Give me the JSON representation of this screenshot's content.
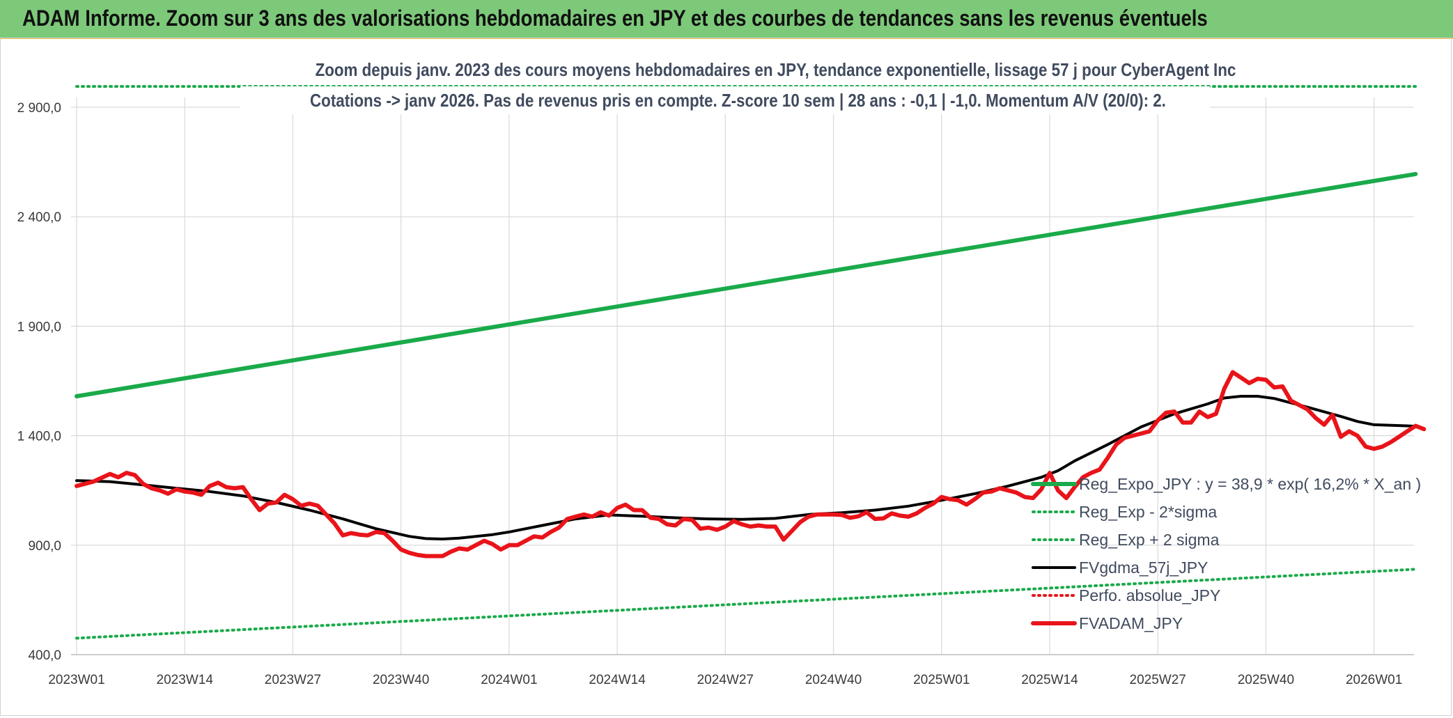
{
  "banner": {
    "title": "ADAM Informe. Zoom sur 3 ans des valorisations hebdomadaires en JPY et des courbes de tendances sans les revenus éventuels"
  },
  "chart_data": {
    "type": "line",
    "title_line1": "Zoom depuis janv. 2023 des cours moyens hebdomadaires en JPY, tendance exponentielle, lissage 57 j pour CyberAgent Inc",
    "title_line2": "Cotations -> janv 2026. Pas de revenus pris en compte. Z-score 10 sem | 28 ans : -0,1 | -1,0. Momentum A/V (20/0): 2.",
    "ylim": [
      400,
      3000
    ],
    "yticks": [
      400,
      900,
      1400,
      1900,
      2400,
      2900
    ],
    "ytick_labels": [
      "400,0",
      "900,0",
      "1 400,0",
      "1 900,0",
      "2 400,0",
      "2 900,0"
    ],
    "xticks": [
      {
        "week": 0,
        "label": "2023W01"
      },
      {
        "week": 13,
        "label": "2023W14"
      },
      {
        "week": 26,
        "label": "2023W27"
      },
      {
        "week": 39,
        "label": "2023W40"
      },
      {
        "week": 52,
        "label": "2024W01"
      },
      {
        "week": 65,
        "label": "2024W14"
      },
      {
        "week": 78,
        "label": "2024W27"
      },
      {
        "week": 91,
        "label": "2024W40"
      },
      {
        "week": 104,
        "label": "2025W01"
      },
      {
        "week": 117,
        "label": "2025W14"
      },
      {
        "week": 130,
        "label": "2025W27"
      },
      {
        "week": 143,
        "label": "2025W40"
      },
      {
        "week": 156,
        "label": "2026W01"
      }
    ],
    "x_range_weeks": [
      0,
      161
    ],
    "grid": true,
    "legend_position": "bottom-right inside plot",
    "series": [
      {
        "name": "Reg_Expo_JPY : y = 38,9 * exp( 16,2% *  X_an )",
        "color": "#1aaa4a",
        "style": "solid-thick",
        "legend_style": "solid-thick",
        "points": [
          [
            0,
            1580
          ],
          [
            161,
            2595
          ]
        ]
      },
      {
        "name": "Reg_Exp - 2*sigma",
        "color": "#1aaa4a",
        "style": "dotted",
        "legend_style": "dotted",
        "points": [
          [
            0,
            475
          ],
          [
            161,
            790
          ]
        ]
      },
      {
        "name": "Reg_Exp + 2 sigma",
        "color": "#1aaa4a",
        "style": "dotted",
        "legend_style": "dotted",
        "points": [
          [
            0,
            2995
          ],
          [
            161,
            2995
          ]
        ]
      },
      {
        "name": "FVgdma_57j_JPY",
        "color": "#000000",
        "style": "solid",
        "legend_style": "solid",
        "points": [
          [
            0,
            1195
          ],
          [
            4,
            1190
          ],
          [
            8,
            1175
          ],
          [
            12,
            1160
          ],
          [
            16,
            1145
          ],
          [
            20,
            1125
          ],
          [
            24,
            1095
          ],
          [
            28,
            1060
          ],
          [
            32,
            1020
          ],
          [
            36,
            975
          ],
          [
            40,
            940
          ],
          [
            42,
            930
          ],
          [
            44,
            928
          ],
          [
            46,
            932
          ],
          [
            50,
            948
          ],
          [
            52,
            960
          ],
          [
            56,
            990
          ],
          [
            60,
            1020
          ],
          [
            64,
            1038
          ],
          [
            68,
            1032
          ],
          [
            72,
            1025
          ],
          [
            76,
            1020
          ],
          [
            80,
            1018
          ],
          [
            84,
            1022
          ],
          [
            88,
            1040
          ],
          [
            92,
            1048
          ],
          [
            96,
            1060
          ],
          [
            100,
            1078
          ],
          [
            104,
            1105
          ],
          [
            108,
            1135
          ],
          [
            112,
            1170
          ],
          [
            116,
            1210
          ],
          [
            118,
            1240
          ],
          [
            120,
            1285
          ],
          [
            124,
            1360
          ],
          [
            128,
            1440
          ],
          [
            132,
            1500
          ],
          [
            136,
            1545
          ],
          [
            138,
            1572
          ],
          [
            140,
            1580
          ],
          [
            142,
            1580
          ],
          [
            144,
            1570
          ],
          [
            148,
            1530
          ],
          [
            152,
            1488
          ],
          [
            154,
            1465
          ],
          [
            156,
            1450
          ],
          [
            160,
            1445
          ],
          [
            161,
            1443
          ]
        ]
      },
      {
        "name": "Perfo. absolue_JPY",
        "color": "#e8141a",
        "style": "dotted",
        "legend_style": "dotted",
        "points": []
      },
      {
        "name": "FVADAM_JPY",
        "color": "#e8141a",
        "style": "solid-thick",
        "legend_style": "solid-thick",
        "points": [
          [
            0,
            1170
          ],
          [
            2,
            1190
          ],
          [
            4,
            1225
          ],
          [
            5,
            1210
          ],
          [
            6,
            1230
          ],
          [
            7,
            1220
          ],
          [
            8,
            1180
          ],
          [
            9,
            1160
          ],
          [
            10,
            1150
          ],
          [
            11,
            1135
          ],
          [
            12,
            1155
          ],
          [
            13,
            1145
          ],
          [
            14,
            1140
          ],
          [
            15,
            1130
          ],
          [
            16,
            1170
          ],
          [
            17,
            1185
          ],
          [
            18,
            1165
          ],
          [
            19,
            1160
          ],
          [
            20,
            1165
          ],
          [
            21,
            1110
          ],
          [
            22,
            1060
          ],
          [
            23,
            1090
          ],
          [
            24,
            1095
          ],
          [
            25,
            1130
          ],
          [
            26,
            1110
          ],
          [
            27,
            1080
          ],
          [
            28,
            1090
          ],
          [
            29,
            1080
          ],
          [
            30,
            1040
          ],
          [
            31,
            1000
          ],
          [
            32,
            945
          ],
          [
            33,
            955
          ],
          [
            34,
            948
          ],
          [
            35,
            945
          ],
          [
            36,
            960
          ],
          [
            37,
            955
          ],
          [
            38,
            920
          ],
          [
            39,
            880
          ],
          [
            40,
            865
          ],
          [
            41,
            855
          ],
          [
            42,
            850
          ],
          [
            43,
            850
          ],
          [
            44,
            850
          ],
          [
            45,
            870
          ],
          [
            46,
            885
          ],
          [
            47,
            880
          ],
          [
            48,
            900
          ],
          [
            49,
            920
          ],
          [
            50,
            905
          ],
          [
            51,
            880
          ],
          [
            52,
            900
          ],
          [
            53,
            900
          ],
          [
            54,
            920
          ],
          [
            55,
            940
          ],
          [
            56,
            935
          ],
          [
            57,
            960
          ],
          [
            58,
            980
          ],
          [
            59,
            1020
          ],
          [
            60,
            1030
          ],
          [
            61,
            1040
          ],
          [
            62,
            1030
          ],
          [
            63,
            1050
          ],
          [
            64,
            1035
          ],
          [
            65,
            1070
          ],
          [
            66,
            1085
          ],
          [
            67,
            1060
          ],
          [
            68,
            1060
          ],
          [
            69,
            1025
          ],
          [
            70,
            1020
          ],
          [
            71,
            995
          ],
          [
            72,
            990
          ],
          [
            73,
            1020
          ],
          [
            74,
            1015
          ],
          [
            75,
            975
          ],
          [
            76,
            980
          ],
          [
            77,
            970
          ],
          [
            78,
            985
          ],
          [
            79,
            1010
          ],
          [
            80,
            995
          ],
          [
            81,
            985
          ],
          [
            82,
            990
          ],
          [
            83,
            985
          ],
          [
            84,
            985
          ],
          [
            85,
            925
          ],
          [
            86,
            965
          ],
          [
            87,
            1005
          ],
          [
            88,
            1030
          ],
          [
            89,
            1040
          ],
          [
            90,
            1040
          ],
          [
            91,
            1040
          ],
          [
            92,
            1038
          ],
          [
            93,
            1025
          ],
          [
            94,
            1032
          ],
          [
            95,
            1050
          ],
          [
            96,
            1020
          ],
          [
            97,
            1022
          ],
          [
            98,
            1045
          ],
          [
            99,
            1035
          ],
          [
            100,
            1030
          ],
          [
            101,
            1045
          ],
          [
            102,
            1070
          ],
          [
            103,
            1090
          ],
          [
            104,
            1120
          ],
          [
            105,
            1110
          ],
          [
            106,
            1105
          ],
          [
            107,
            1085
          ],
          [
            108,
            1110
          ],
          [
            109,
            1140
          ],
          [
            110,
            1145
          ],
          [
            111,
            1160
          ],
          [
            112,
            1150
          ],
          [
            113,
            1140
          ],
          [
            114,
            1120
          ],
          [
            115,
            1115
          ],
          [
            116,
            1155
          ],
          [
            117,
            1230
          ],
          [
            118,
            1150
          ],
          [
            119,
            1115
          ],
          [
            120,
            1165
          ],
          [
            121,
            1210
          ],
          [
            122,
            1230
          ],
          [
            123,
            1245
          ],
          [
            124,
            1300
          ],
          [
            125,
            1360
          ],
          [
            126,
            1390
          ],
          [
            127,
            1400
          ],
          [
            128,
            1410
          ],
          [
            129,
            1420
          ],
          [
            130,
            1470
          ],
          [
            131,
            1505
          ],
          [
            132,
            1510
          ],
          [
            133,
            1460
          ],
          [
            134,
            1460
          ],
          [
            135,
            1510
          ],
          [
            136,
            1485
          ],
          [
            137,
            1500
          ],
          [
            138,
            1615
          ],
          [
            139,
            1690
          ],
          [
            140,
            1665
          ],
          [
            141,
            1640
          ],
          [
            142,
            1660
          ],
          [
            143,
            1655
          ],
          [
            144,
            1620
          ],
          [
            145,
            1625
          ],
          [
            146,
            1560
          ],
          [
            147,
            1540
          ],
          [
            148,
            1520
          ],
          [
            149,
            1480
          ],
          [
            150,
            1450
          ],
          [
            151,
            1495
          ],
          [
            152,
            1395
          ],
          [
            153,
            1420
          ],
          [
            154,
            1400
          ],
          [
            155,
            1350
          ],
          [
            156,
            1340
          ],
          [
            157,
            1350
          ],
          [
            158,
            1370
          ],
          [
            159,
            1395
          ],
          [
            160,
            1420
          ],
          [
            161,
            1445
          ],
          [
            162,
            1430
          ]
        ]
      }
    ]
  }
}
